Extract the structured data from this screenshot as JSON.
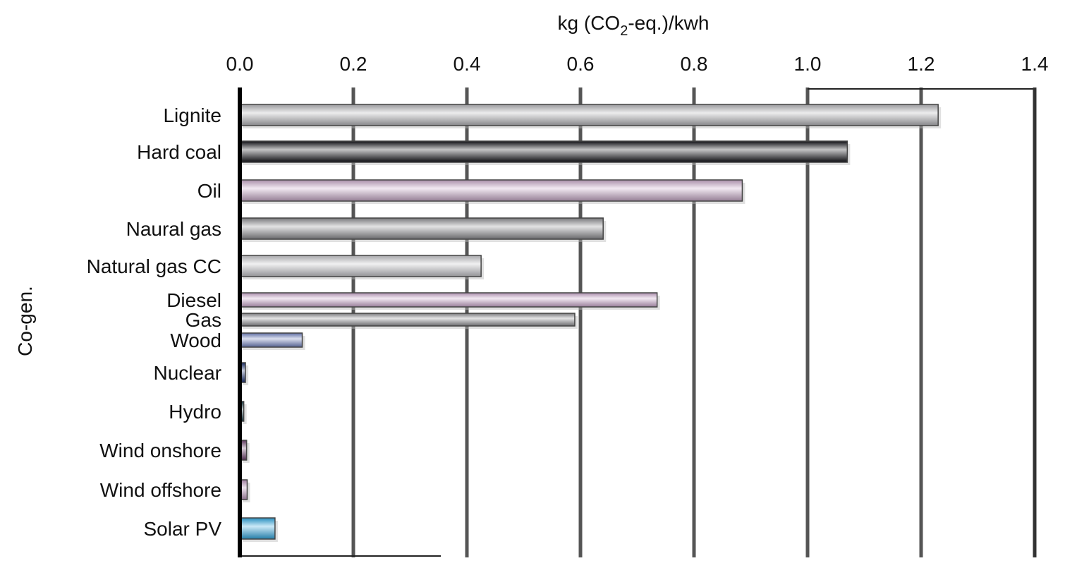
{
  "chart_data": {
    "type": "bar",
    "orientation": "horizontal",
    "xlabel": {
      "pre": "kg (CO",
      "sub": "2",
      "post": "-eq.)/kwh"
    },
    "ylabel": "Co-gen.",
    "xlim": [
      0,
      1.4
    ],
    "xticks": [
      "0.0",
      "0.2",
      "0.4",
      "0.6",
      "0.8",
      "1.0",
      "1.2",
      "1.4"
    ],
    "grid": true,
    "categories": [
      "Lignite",
      "Hard coal",
      "Oil",
      "Naural gas",
      "Natural gas CC",
      "Diesel",
      "Gas",
      "Wood",
      "Nuclear",
      "Hydro",
      "Wind onshore",
      "Wind offshore",
      "Solar PV"
    ],
    "values": [
      1.23,
      1.07,
      0.885,
      0.64,
      0.425,
      0.735,
      0.59,
      0.11,
      0.01,
      0.007,
      0.012,
      0.013,
      0.062
    ],
    "bar_colors": [
      "#b4b4b8",
      "#111116",
      "#c7a8c7",
      "#8c8c90",
      "#c4c4c8",
      "#c9a6ca",
      "#8e8e92",
      "#6f80c0",
      "#1a2f6e",
      "#163f4a",
      "#6a3f6a",
      "#b892b8",
      "#2ea7e0"
    ]
  }
}
